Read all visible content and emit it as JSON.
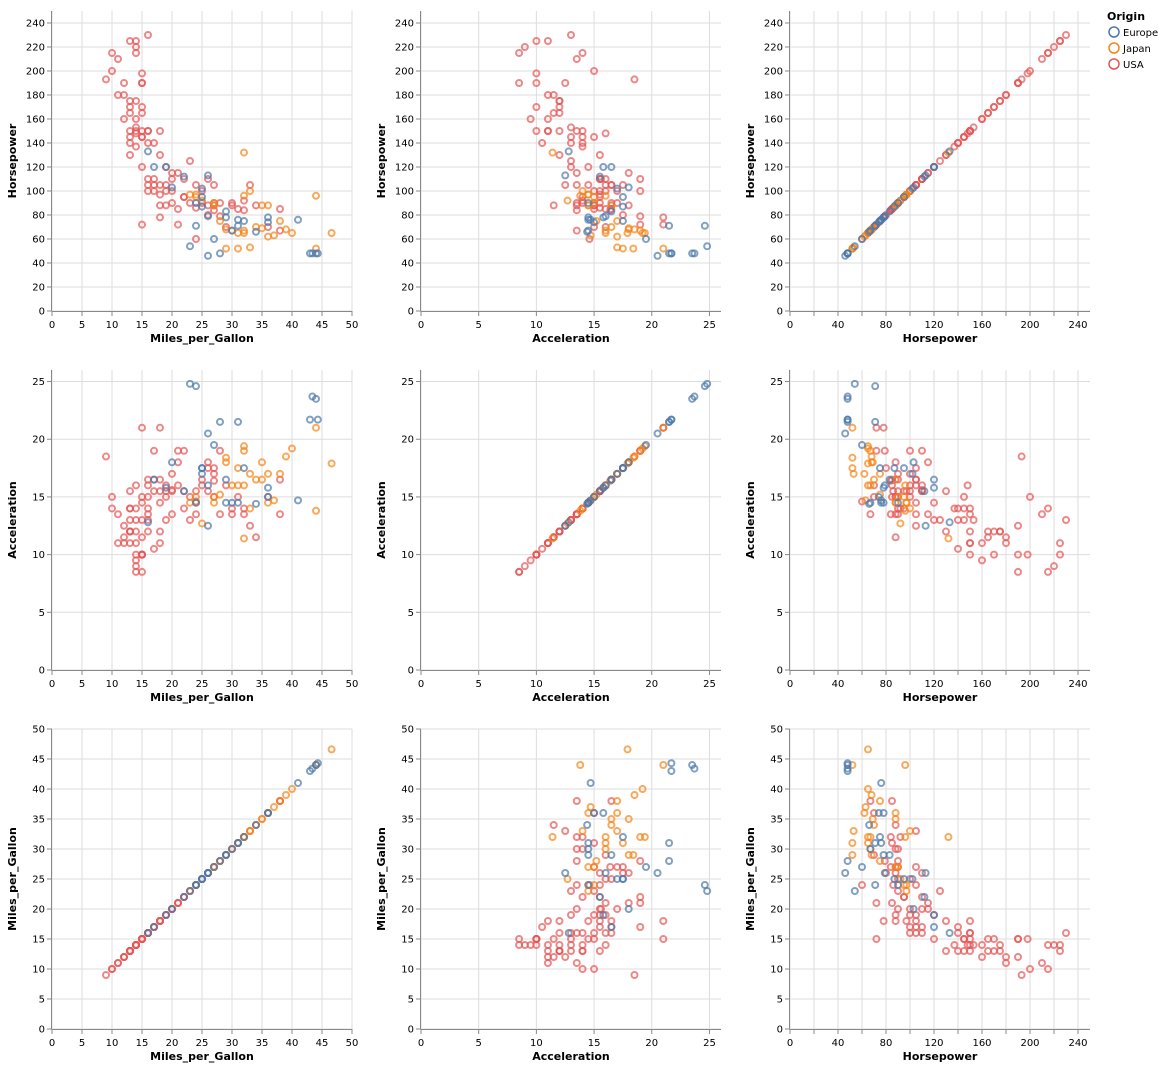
{
  "chart_data": {
    "type": "scatter",
    "title": "",
    "grid": true,
    "legend_position": "top-right",
    "legend": {
      "title": "Origin",
      "entries": [
        {
          "name": "Europe",
          "color": "#4c78a8"
        },
        {
          "name": "Japan",
          "color": "#f58518"
        },
        {
          "name": "USA",
          "color": "#e45756"
        }
      ]
    },
    "fields": {
      "Miles_per_Gallon": {
        "label": "Miles_per_Gallon",
        "domain": [
          0,
          50
        ],
        "ticks": [
          0,
          5,
          10,
          15,
          20,
          25,
          30,
          35,
          40,
          45,
          50
        ],
        "labels": [
          0,
          5,
          10,
          15,
          20,
          25,
          30,
          35,
          40,
          45,
          50
        ]
      },
      "Acceleration": {
        "label": "Acceleration",
        "domain": [
          0,
          26
        ],
        "ticks": [
          0,
          5,
          10,
          15,
          20,
          25
        ],
        "labels": [
          0,
          5,
          10,
          15,
          20,
          25
        ]
      },
      "Horsepower": {
        "label": "Horsepower",
        "domain": [
          0,
          250
        ],
        "ticks": [
          0,
          20,
          40,
          60,
          80,
          100,
          120,
          140,
          160,
          180,
          200,
          220,
          240
        ],
        "labels_y": [
          0,
          20,
          40,
          60,
          80,
          100,
          120,
          140,
          160,
          180,
          200,
          220,
          240
        ],
        "labels_x": [
          0,
          40,
          80,
          120,
          160,
          200,
          240
        ]
      }
    },
    "rows": [
      "Horsepower",
      "Acceleration",
      "Miles_per_Gallon"
    ],
    "columns": [
      "Miles_per_Gallon",
      "Acceleration",
      "Horsepower"
    ],
    "record_fields": [
      "Miles_per_Gallon",
      "Horsepower",
      "Acceleration",
      "Origin"
    ],
    "records": [
      [
        18,
        130,
        12,
        "USA"
      ],
      [
        15,
        165,
        11.5,
        "USA"
      ],
      [
        18,
        150,
        11,
        "USA"
      ],
      [
        16,
        150,
        12,
        "USA"
      ],
      [
        17,
        140,
        10.5,
        "USA"
      ],
      [
        15,
        198,
        10,
        "USA"
      ],
      [
        14,
        220,
        9,
        "USA"
      ],
      [
        14,
        215,
        8.5,
        "USA"
      ],
      [
        14,
        225,
        10,
        "USA"
      ],
      [
        15,
        190,
        8.5,
        "USA"
      ],
      [
        15,
        170,
        10,
        "USA"
      ],
      [
        14,
        160,
        9.5,
        "USA"
      ],
      [
        15,
        150,
        10,
        "USA"
      ],
      [
        22,
        95,
        15.5,
        "USA"
      ],
      [
        18,
        97,
        15.5,
        "USA"
      ],
      [
        21,
        85,
        16,
        "USA"
      ],
      [
        10,
        215,
        14,
        "USA"
      ],
      [
        10,
        200,
        15,
        "USA"
      ],
      [
        11,
        210,
        13.5,
        "USA"
      ],
      [
        9,
        193,
        18.5,
        "USA"
      ],
      [
        13,
        165,
        12,
        "USA"
      ],
      [
        12,
        180,
        11.5,
        "USA"
      ],
      [
        13,
        175,
        12,
        "USA"
      ],
      [
        13,
        150,
        14,
        "USA"
      ],
      [
        14,
        153,
        13,
        "USA"
      ],
      [
        13,
        170,
        12,
        "USA"
      ],
      [
        13,
        140,
        13,
        "USA"
      ],
      [
        12,
        190,
        12.5,
        "USA"
      ],
      [
        14,
        150,
        11,
        "USA"
      ],
      [
        16,
        150,
        13.5,
        "USA"
      ],
      [
        17,
        110,
        15.5,
        "USA"
      ],
      [
        19,
        100,
        15.5,
        "USA"
      ],
      [
        18,
        105,
        14.5,
        "USA"
      ],
      [
        16,
        100,
        15,
        "USA"
      ],
      [
        15,
        145,
        13,
        "USA"
      ],
      [
        14,
        137,
        14,
        "USA"
      ],
      [
        16,
        110,
        16,
        "USA"
      ],
      [
        18,
        88,
        16.5,
        "USA"
      ],
      [
        20,
        100,
        17,
        "USA"
      ],
      [
        21,
        72,
        19,
        "USA"
      ],
      [
        20,
        90,
        15.5,
        "USA"
      ],
      [
        19,
        105,
        16,
        "USA"
      ],
      [
        22,
        110,
        19,
        "USA"
      ],
      [
        16,
        105,
        16.5,
        "USA"
      ],
      [
        17,
        100,
        19,
        "USA"
      ],
      [
        19,
        88,
        15,
        "USA"
      ],
      [
        18,
        78,
        21,
        "USA"
      ],
      [
        23,
        90,
        15,
        "USA"
      ],
      [
        24,
        86,
        15.5,
        "USA"
      ],
      [
        25,
        90,
        16.5,
        "USA"
      ],
      [
        26,
        88,
        18,
        "USA"
      ],
      [
        27,
        90,
        17,
        "USA"
      ],
      [
        28,
        79,
        19,
        "USA"
      ],
      [
        26,
        80,
        17.5,
        "USA"
      ],
      [
        25,
        100,
        16,
        "USA"
      ],
      [
        24,
        105,
        13.5,
        "USA"
      ],
      [
        23,
        125,
        13,
        "USA"
      ],
      [
        27,
        88,
        15,
        "USA"
      ],
      [
        29,
        70,
        16,
        "USA"
      ],
      [
        30,
        90,
        14,
        "USA"
      ],
      [
        31,
        85,
        15,
        "USA"
      ],
      [
        32,
        84,
        13.5,
        "USA"
      ],
      [
        34,
        88,
        11.5,
        "USA"
      ],
      [
        36,
        70,
        15,
        "USA"
      ],
      [
        38,
        67,
        13.5,
        "USA"
      ],
      [
        38,
        85,
        16.5,
        "USA"
      ],
      [
        27,
        105,
        17.5,
        "USA"
      ],
      [
        26,
        110,
        15.5,
        "USA"
      ],
      [
        20,
        115,
        13.5,
        "USA"
      ],
      [
        19,
        120,
        13,
        "USA"
      ],
      [
        21,
        115,
        18,
        "USA"
      ],
      [
        22,
        95,
        14,
        "USA"
      ],
      [
        17,
        105,
        16.5,
        "USA"
      ],
      [
        16,
        140,
        14,
        "USA"
      ],
      [
        15,
        120,
        14.5,
        "USA"
      ],
      [
        13,
        130,
        15.5,
        "USA"
      ],
      [
        14,
        175,
        12,
        "USA"
      ],
      [
        15,
        190,
        10,
        "USA"
      ],
      [
        16,
        230,
        13,
        "USA"
      ],
      [
        12,
        160,
        11,
        "USA"
      ],
      [
        13,
        145,
        14,
        "USA"
      ],
      [
        11,
        180,
        11,
        "USA"
      ],
      [
        13,
        225,
        11,
        "USA"
      ],
      [
        14,
        148,
        16,
        "USA"
      ],
      [
        15,
        72,
        21,
        "USA"
      ],
      [
        15,
        145,
        15,
        "USA"
      ],
      [
        20,
        110,
        15.6,
        "USA"
      ],
      [
        28,
        90,
        13.5,
        "USA"
      ],
      [
        30,
        88,
        13.5,
        "USA"
      ],
      [
        33,
        105,
        12.5,
        "USA"
      ],
      [
        24,
        60,
        14.6,
        "USA"
      ],
      [
        27,
        84,
        16.4,
        "USA"
      ],
      [
        32,
        92,
        14,
        "USA"
      ],
      [
        24,
        95,
        15,
        "Japan"
      ],
      [
        27,
        88,
        14.5,
        "Japan"
      ],
      [
        27,
        90,
        15,
        "Japan"
      ],
      [
        31,
        65,
        16,
        "Japan"
      ],
      [
        35,
        69,
        18,
        "Japan"
      ],
      [
        32,
        65,
        19.4,
        "Japan"
      ],
      [
        33,
        53,
        17,
        "Japan"
      ],
      [
        29,
        52,
        18.4,
        "Japan"
      ],
      [
        31,
        52,
        17.5,
        "Japan"
      ],
      [
        24,
        97,
        14.5,
        "Japan"
      ],
      [
        32,
        67,
        19,
        "Japan"
      ],
      [
        40,
        65,
        19.2,
        "Japan"
      ],
      [
        44,
        52,
        21,
        "Japan"
      ],
      [
        46.6,
        65,
        17.9,
        "Japan"
      ],
      [
        36,
        88,
        14.5,
        "Japan"
      ],
      [
        38,
        75,
        17,
        "Japan"
      ],
      [
        39,
        68,
        18.5,
        "Japan"
      ],
      [
        34,
        70,
        16.5,
        "Japan"
      ],
      [
        32,
        132,
        11.4,
        "Japan"
      ],
      [
        33,
        100,
        14,
        "Japan"
      ],
      [
        25,
        92,
        12.7,
        "Japan"
      ],
      [
        23,
        97,
        14.5,
        "Japan"
      ],
      [
        28,
        75,
        15.2,
        "Japan"
      ],
      [
        30,
        67,
        16,
        "Japan"
      ],
      [
        37,
        63,
        14.7,
        "Japan"
      ],
      [
        44,
        96,
        13.8,
        "Japan"
      ],
      [
        29,
        68,
        18,
        "Japan"
      ],
      [
        32,
        96,
        16,
        "Japan"
      ],
      [
        35,
        88,
        16.5,
        "Japan"
      ],
      [
        36,
        62,
        17,
        "Japan"
      ],
      [
        26,
        46,
        20.5,
        "Europe"
      ],
      [
        25,
        87,
        17.5,
        "Europe"
      ],
      [
        24,
        90,
        14.5,
        "Europe"
      ],
      [
        25,
        95,
        17.5,
        "Europe"
      ],
      [
        26,
        113,
        12.5,
        "Europe"
      ],
      [
        28,
        48,
        21.5,
        "Europe"
      ],
      [
        23,
        54,
        24.8,
        "Europe"
      ],
      [
        43,
        48,
        21.7,
        "Europe"
      ],
      [
        44,
        48,
        23.5,
        "Europe"
      ],
      [
        44.3,
        48,
        21.7,
        "Europe"
      ],
      [
        43.4,
        48,
        23.7,
        "Europe"
      ],
      [
        29,
        83,
        16.5,
        "Europe"
      ],
      [
        30,
        67,
        14.5,
        "Europe"
      ],
      [
        31,
        76,
        14.5,
        "Europe"
      ],
      [
        36,
        74,
        15,
        "Europe"
      ],
      [
        41,
        76,
        14.7,
        "Europe"
      ],
      [
        27,
        60,
        19.5,
        "Europe"
      ],
      [
        26,
        79,
        16,
        "Europe"
      ],
      [
        22,
        112,
        15.5,
        "Europe"
      ],
      [
        20,
        103,
        18,
        "Europe"
      ],
      [
        17,
        120,
        16.5,
        "Europe"
      ],
      [
        16,
        133,
        12.8,
        "Europe"
      ],
      [
        24,
        71,
        24.6,
        "Europe"
      ],
      [
        29,
        78,
        14.5,
        "Europe"
      ],
      [
        31,
        71,
        21.5,
        "Europe"
      ],
      [
        34,
        66,
        14.4,
        "Europe"
      ],
      [
        36,
        78,
        15.8,
        "Europe"
      ],
      [
        32,
        75,
        17.5,
        "Europe"
      ],
      [
        25,
        102,
        17,
        "Europe"
      ],
      [
        19,
        120,
        15.8,
        "Europe"
      ]
    ]
  }
}
